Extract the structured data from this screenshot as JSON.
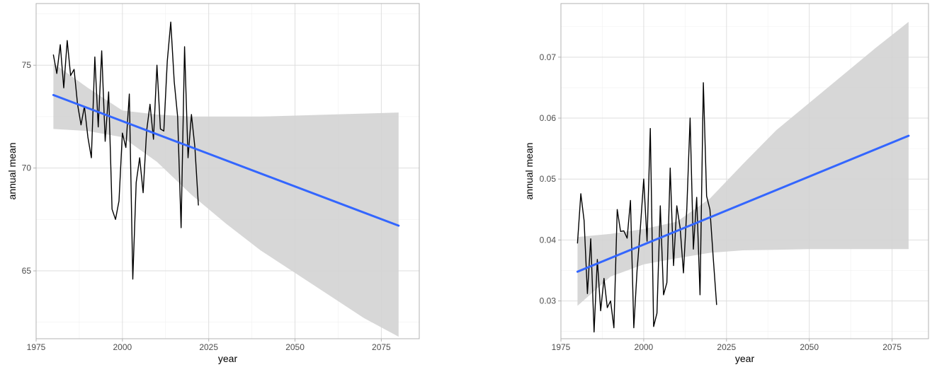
{
  "chart_data": [
    {
      "type": "line",
      "xlabel": "year",
      "ylabel": "annual mean",
      "xlim": [
        1975,
        2086
      ],
      "ylim": [
        61.7,
        78.0
      ],
      "xticks": [
        1975,
        2000,
        2025,
        2050,
        2075
      ],
      "xtick_labels": [
        "1975",
        "2000",
        "2025",
        "2050",
        "2075"
      ],
      "yticks": [
        65,
        70,
        75
      ],
      "ytick_labels": [
        "65",
        "70",
        "75"
      ],
      "grid": true,
      "series": [
        {
          "kind": "observed",
          "color": "#000000",
          "x": [
            1980,
            1981,
            1982,
            1983,
            1984,
            1985,
            1986,
            1987,
            1988,
            1989,
            1990,
            1991,
            1992,
            1993,
            1994,
            1995,
            1996,
            1997,
            1998,
            1999,
            2000,
            2001,
            2002,
            2003,
            2004,
            2005,
            2006,
            2007,
            2008,
            2009,
            2010,
            2011,
            2012,
            2013,
            2014,
            2015,
            2016,
            2017,
            2018,
            2019,
            2020,
            2021,
            2022
          ],
          "y": [
            75.5,
            74.6,
            76.0,
            73.9,
            76.2,
            74.5,
            74.8,
            73.1,
            72.1,
            73.0,
            71.5,
            70.5,
            75.4,
            72.0,
            75.7,
            71.3,
            73.7,
            68.0,
            67.5,
            68.4,
            71.7,
            71.0,
            73.6,
            64.6,
            69.3,
            70.5,
            68.8,
            71.8,
            73.1,
            71.4,
            75.0,
            71.9,
            71.8,
            75.2,
            77.1,
            74.2,
            72.5,
            67.1,
            75.9,
            70.5,
            72.6,
            71.0,
            68.2
          ]
        },
        {
          "kind": "trend",
          "color": "#3366ff",
          "x": [
            1980,
            2080
          ],
          "y": [
            73.55,
            67.2
          ]
        }
      ],
      "confidence_band": {
        "color": "#d3d3d3",
        "x": [
          1980,
          1990,
          2000,
          2010,
          2020,
          2030,
          2040,
          2050,
          2060,
          2070,
          2080
        ],
        "lower": [
          71.9,
          71.8,
          71.5,
          70.3,
          68.7,
          67.3,
          66.0,
          64.9,
          63.8,
          62.7,
          61.8
        ],
        "upper": [
          75.1,
          73.9,
          72.8,
          72.6,
          72.5,
          72.5,
          72.5,
          72.55,
          72.6,
          72.65,
          72.7
        ]
      }
    },
    {
      "type": "line",
      "xlabel": "year",
      "ylabel": "annual mean",
      "xlim": [
        1975,
        2086
      ],
      "ylim": [
        0.0238,
        0.0788
      ],
      "xticks": [
        1975,
        2000,
        2025,
        2050,
        2075
      ],
      "xtick_labels": [
        "1975",
        "2000",
        "2025",
        "2050",
        "2075"
      ],
      "yticks": [
        0.03,
        0.04,
        0.05,
        0.06,
        0.07
      ],
      "ytick_labels": [
        "0.03",
        "0.04",
        "0.05",
        "0.06",
        "0.07"
      ],
      "grid": true,
      "series": [
        {
          "kind": "observed",
          "color": "#000000",
          "x": [
            1980,
            1981,
            1982,
            1983,
            1984,
            1985,
            1986,
            1987,
            1988,
            1989,
            1990,
            1991,
            1992,
            1993,
            1994,
            1995,
            1996,
            1997,
            1998,
            1999,
            2000,
            2001,
            2002,
            2003,
            2004,
            2005,
            2006,
            2007,
            2008,
            2009,
            2010,
            2011,
            2012,
            2013,
            2014,
            2015,
            2016,
            2017,
            2018,
            2019,
            2020,
            2021,
            2022
          ],
          "y": [
            0.0395,
            0.0476,
            0.0432,
            0.0312,
            0.0402,
            0.0249,
            0.0368,
            0.0284,
            0.0337,
            0.0289,
            0.03,
            0.0256,
            0.045,
            0.0414,
            0.0415,
            0.0403,
            0.0465,
            0.0256,
            0.035,
            0.042,
            0.05,
            0.0398,
            0.0583,
            0.0258,
            0.028,
            0.0456,
            0.031,
            0.033,
            0.0518,
            0.0358,
            0.0456,
            0.042,
            0.0346,
            0.045,
            0.06,
            0.0385,
            0.047,
            0.031,
            0.0658,
            0.0472,
            0.045,
            0.037,
            0.0294
          ]
        },
        {
          "kind": "trend",
          "color": "#3366ff",
          "x": [
            1980,
            2080
          ],
          "y": [
            0.0348,
            0.0571
          ]
        }
      ],
      "confidence_band": {
        "color": "#d3d3d3",
        "x": [
          1980,
          1990,
          2000,
          2010,
          2020,
          2030,
          2040,
          2050,
          2060,
          2070,
          2080
        ],
        "lower": [
          0.0292,
          0.034,
          0.036,
          0.037,
          0.0379,
          0.0383,
          0.0384,
          0.0385,
          0.0385,
          0.0385,
          0.0385
        ],
        "upper": [
          0.0405,
          0.041,
          0.0418,
          0.043,
          0.0468,
          0.0525,
          0.058,
          0.0625,
          0.067,
          0.0715,
          0.0758
        ]
      }
    }
  ]
}
